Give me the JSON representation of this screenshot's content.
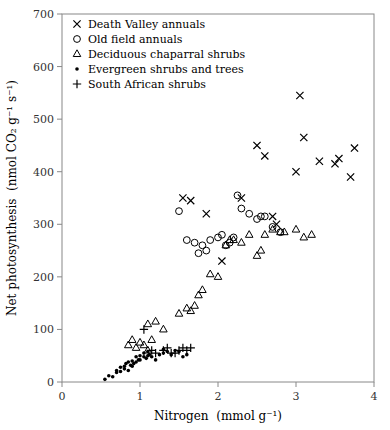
{
  "chart_data": {
    "type": "scatter",
    "xlabel": "Nitrogen  (mmol g⁻¹)",
    "ylabel": "Net photosynthesis  (nmol CO₂ g⁻¹ s⁻¹)",
    "color": "#000000",
    "legend": "upper left",
    "xlim": [
      0,
      4
    ],
    "ylim": [
      0,
      700
    ],
    "xticks": [
      0,
      1,
      2,
      3,
      4
    ],
    "yticks": [
      0,
      100,
      200,
      300,
      400,
      500,
      600,
      700
    ],
    "series": [
      {
        "name": "Death Valley annuals",
        "marker": "x",
        "x": [
          1.55,
          1.65,
          1.85,
          2.05,
          2.3,
          2.5,
          2.6,
          2.7,
          2.75,
          3.0,
          3.05,
          3.1,
          3.3,
          3.5,
          3.55,
          3.7,
          3.75
        ],
        "values": [
          350,
          345,
          320,
          230,
          350,
          450,
          430,
          315,
          300,
          400,
          545,
          465,
          420,
          415,
          425,
          390,
          445
        ]
      },
      {
        "name": "Old field annuals",
        "marker": "circle",
        "x": [
          1.5,
          1.6,
          1.7,
          1.75,
          1.8,
          1.85,
          1.9,
          2.0,
          2.05,
          2.1,
          2.15,
          2.2,
          2.25,
          2.3,
          2.4,
          2.5,
          2.55,
          2.6,
          2.7,
          2.8
        ],
        "values": [
          325,
          270,
          265,
          245,
          260,
          250,
          270,
          275,
          280,
          260,
          265,
          275,
          355,
          330,
          320,
          310,
          315,
          315,
          295,
          285
        ]
      },
      {
        "name": "Deciduous chaparral shrubs",
        "marker": "triangle",
        "x": [
          0.85,
          0.9,
          0.95,
          1.0,
          1.05,
          1.1,
          1.1,
          1.15,
          1.2,
          1.3,
          1.5,
          1.6,
          1.65,
          1.7,
          1.75,
          1.8,
          1.9,
          2.0,
          2.1,
          2.15,
          2.2,
          2.3,
          2.4,
          2.5,
          2.55,
          2.6,
          2.7,
          2.8,
          2.85,
          3.0,
          3.1,
          3.2
        ],
        "values": [
          70,
          80,
          65,
          75,
          70,
          60,
          110,
          80,
          115,
          100,
          130,
          140,
          135,
          145,
          165,
          175,
          205,
          200,
          260,
          270,
          270,
          265,
          280,
          240,
          250,
          280,
          290,
          285,
          285,
          290,
          275,
          280
        ]
      },
      {
        "name": "Evergreen shrubs and trees",
        "marker": "dot",
        "x": [
          0.55,
          0.6,
          0.65,
          0.7,
          0.7,
          0.75,
          0.75,
          0.8,
          0.8,
          0.82,
          0.85,
          0.85,
          0.88,
          0.9,
          0.9,
          0.92,
          0.95,
          0.95,
          0.98,
          1.0,
          1.0,
          1.05,
          1.05,
          1.08,
          1.1,
          1.1,
          1.12,
          1.15,
          1.2,
          1.25,
          1.3,
          1.3,
          1.35,
          1.4,
          1.45,
          1.5,
          1.55,
          1.6
        ],
        "values": [
          5,
          12,
          10,
          18,
          22,
          20,
          28,
          25,
          30,
          35,
          22,
          38,
          32,
          30,
          40,
          35,
          38,
          48,
          42,
          42,
          50,
          48,
          55,
          45,
          50,
          58,
          52,
          48,
          42,
          52,
          55,
          62,
          58,
          52,
          60,
          58,
          48,
          52
        ]
      },
      {
        "name": "South African shrubs",
        "marker": "plus",
        "x": [
          1.05,
          1.15,
          1.2,
          1.3,
          1.35,
          1.4,
          1.45,
          1.5,
          1.55,
          1.6,
          1.65
        ],
        "values": [
          100,
          60,
          55,
          60,
          65,
          55,
          55,
          60,
          65,
          60,
          65
        ]
      }
    ]
  }
}
